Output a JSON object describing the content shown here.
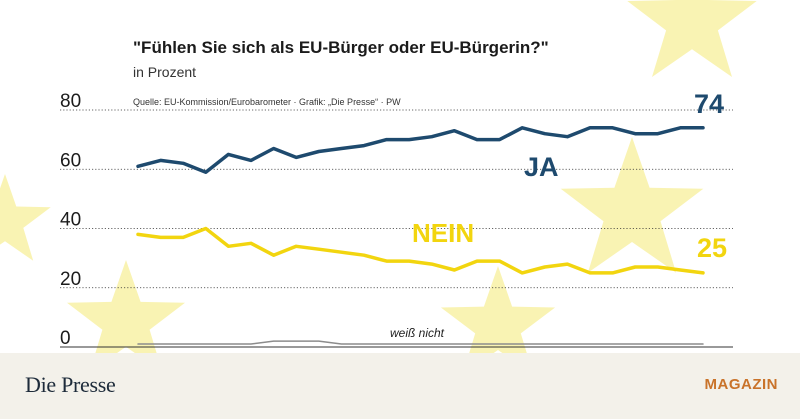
{
  "header": {
    "title": "\"Fühlen Sie sich als EU-Bürger oder EU-Bürgerin?\"",
    "subtitle": "in Prozent",
    "source": "Quelle: EU-Kommission/Eurobarometer · Grafik: „Die Presse“ · PW"
  },
  "footer": {
    "brand": "Die Presse",
    "section": "MAGAZIN"
  },
  "colors": {
    "ja": "#1e4a6e",
    "nein": "#f2d50f",
    "weiss_nicht": "#8c8c8c",
    "star": "#f7ef9a",
    "grid": "#333333"
  },
  "chart_data": {
    "type": "line",
    "title": "\"Fühlen Sie sich als EU-Bürger oder EU-Bürgerin?\"",
    "ylabel": "in Prozent",
    "ylim": [
      0,
      80
    ],
    "yticks": [
      0,
      20,
      40,
      60,
      80
    ],
    "x": [
      1,
      2,
      3,
      4,
      5,
      6,
      7,
      8,
      9,
      10,
      11,
      12,
      13,
      14,
      15,
      16,
      17,
      18,
      19,
      20,
      21,
      22,
      23,
      24,
      25,
      26
    ],
    "series": [
      {
        "name": "JA",
        "label": "JA",
        "end_label": "74",
        "values": [
          61,
          63,
          62,
          59,
          65,
          63,
          67,
          64,
          66,
          67,
          68,
          70,
          70,
          71,
          73,
          70,
          70,
          74,
          72,
          71,
          74,
          74,
          72,
          72,
          74,
          74
        ]
      },
      {
        "name": "NEIN",
        "label": "NEIN",
        "end_label": "25",
        "values": [
          38,
          37,
          37,
          40,
          34,
          35,
          31,
          34,
          33,
          32,
          31,
          29,
          29,
          28,
          26,
          29,
          29,
          25,
          27,
          28,
          25,
          25,
          27,
          27,
          26,
          25
        ]
      },
      {
        "name": "weiß nicht",
        "label": "weiß nicht",
        "values": [
          1,
          1,
          1,
          1,
          1,
          1,
          2,
          2,
          2,
          1,
          1,
          1,
          1,
          1,
          1,
          1,
          1,
          1,
          1,
          1,
          1,
          1,
          1,
          1,
          1,
          1
        ]
      }
    ]
  }
}
